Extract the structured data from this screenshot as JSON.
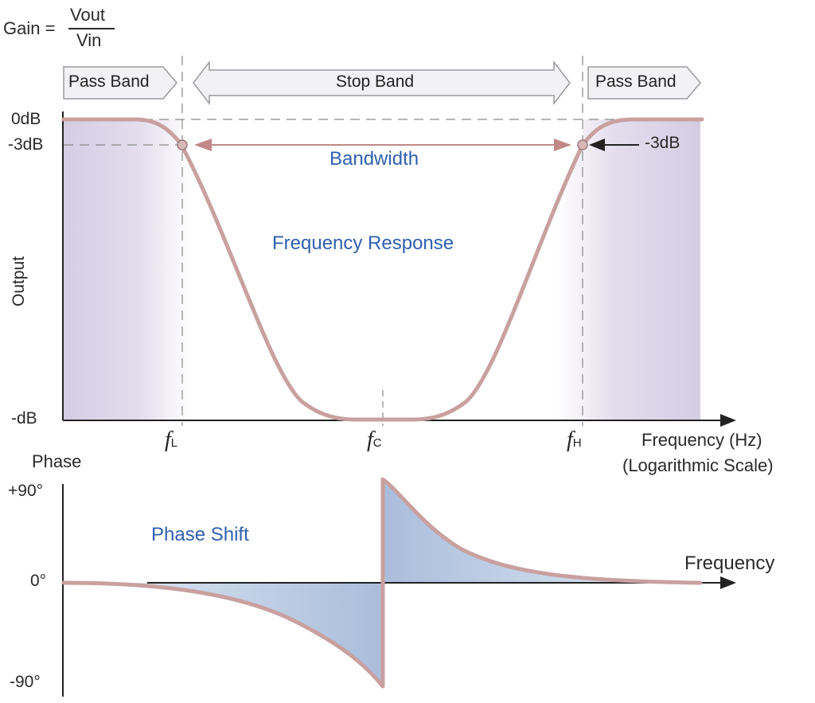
{
  "gain_formula": {
    "lhs": "Gain =",
    "numerator": "Vout",
    "denominator": "Vin"
  },
  "bands": {
    "left_pass": "Pass Band",
    "stop": "Stop Band",
    "right_pass": "Pass Band"
  },
  "output_axis": {
    "label": "Output",
    "tick_0db": "0dB",
    "tick_3db": "-3dB",
    "tick_min": "-dB"
  },
  "annotations": {
    "bandwidth": "Bandwidth",
    "frequency_response": "Frequency Response",
    "minus3db_marker": "-3dB",
    "phase_shift": "Phase Shift"
  },
  "frequency_markers": {
    "fl": {
      "symbol": "f",
      "sub": "L"
    },
    "fc": {
      "symbol": "f",
      "sub": "C"
    },
    "fh": {
      "symbol": "f",
      "sub": "H"
    }
  },
  "x_axis": {
    "label_line1": "Frequency (Hz)",
    "label_line2": "(Logarithmic Scale)"
  },
  "phase_axis": {
    "label": "Phase",
    "tick_pos90": "+90°",
    "tick_zero": "0°",
    "tick_neg90": "-90°",
    "x_label": "Frequency"
  },
  "colors": {
    "curve": "#c9a0a0",
    "pass_fill": "#d6d0e6",
    "phase_fill": "#b3c6e0",
    "blue_text": "#2f5fae",
    "band_arrow_fill": "#f2f2f4",
    "band_arrow_stroke": "#9a9aa2",
    "bandwidth_arrow": "#c08888"
  }
}
